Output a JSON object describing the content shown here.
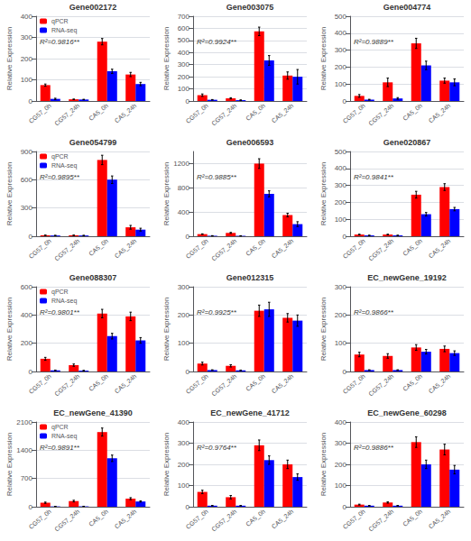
{
  "chart_data": [
    {
      "type": "bar",
      "title": "Gene002172",
      "annotation": "R²=0.9816**",
      "ylabel": "Relative Expression",
      "categories": [
        "CG57_0h",
        "CG57_24h",
        "CA5_0h",
        "CA5_24h"
      ],
      "series": [
        {
          "name": "qPCR",
          "color": "#FF0000",
          "values": [
            75,
            8,
            280,
            125
          ],
          "errors": [
            5,
            1,
            15,
            10
          ]
        },
        {
          "name": "RNA-seq",
          "color": "#0000FF",
          "values": [
            10,
            7,
            140,
            80
          ],
          "errors": [
            3,
            1,
            10,
            8
          ]
        }
      ],
      "ylim": [
        0,
        400
      ],
      "yticks": [
        0,
        100,
        200,
        300,
        400
      ],
      "grid": true,
      "legend": "upper left"
    },
    {
      "type": "bar",
      "title": "Gene003075",
      "annotation": "R²=0.9924**",
      "ylabel": "Relative Expression",
      "categories": [
        "CG57_0h",
        "CG57_24h",
        "CA5_0h",
        "CA5_24h"
      ],
      "series": [
        {
          "name": "qPCR",
          "color": "#FF0000",
          "values": [
            48,
            22,
            575,
            210
          ],
          "errors": [
            10,
            5,
            35,
            30
          ]
        },
        {
          "name": "RNA-seq",
          "color": "#0000FF",
          "values": [
            10,
            7,
            335,
            200
          ],
          "errors": [
            2,
            2,
            40,
            60
          ]
        }
      ],
      "ylim": [
        0,
        700
      ],
      "yticks": [
        0,
        100,
        200,
        300,
        400,
        500,
        600,
        700
      ],
      "grid": true
    },
    {
      "type": "bar",
      "title": "Gene004774",
      "annotation": "R²=0.9889**",
      "ylabel": "Relative Expression",
      "categories": [
        "CG57_0h",
        "CG57_24h",
        "CA5_0h",
        "CA5_24h"
      ],
      "series": [
        {
          "name": "qPCR",
          "color": "#FF0000",
          "values": [
            30,
            110,
            340,
            120
          ],
          "errors": [
            8,
            25,
            30,
            15
          ]
        },
        {
          "name": "RNA-seq",
          "color": "#0000FF",
          "values": [
            8,
            15,
            210,
            110
          ],
          "errors": [
            2,
            5,
            25,
            20
          ]
        }
      ],
      "ylim": [
        0,
        500
      ],
      "yticks": [
        0,
        100,
        200,
        300,
        400,
        500
      ],
      "grid": true
    },
    {
      "type": "bar",
      "title": "Gene054799",
      "annotation": "R²=0.9895**",
      "ylabel": "Relative Expression",
      "categories": [
        "CG57_0h",
        "CG57_24h",
        "CA5_0h",
        "CA5_24h"
      ],
      "series": [
        {
          "name": "qPCR",
          "color": "#FF0000",
          "values": [
            10,
            10,
            810,
            95
          ],
          "errors": [
            2,
            2,
            50,
            20
          ]
        },
        {
          "name": "RNA-seq",
          "color": "#0000FF",
          "values": [
            8,
            8,
            600,
            70
          ],
          "errors": [
            2,
            2,
            40,
            15
          ]
        }
      ],
      "ylim": [
        0,
        900
      ],
      "yticks": [
        0,
        300,
        600,
        900
      ],
      "grid": true,
      "legend": "upper left"
    },
    {
      "type": "bar",
      "title": "Gene006593",
      "annotation": "R²=0.9885**",
      "ylabel": "Relative Expression",
      "categories": [
        "CG57_0h",
        "CG57_24h",
        "CA5_0h",
        "CA5_24h"
      ],
      "series": [
        {
          "name": "qPCR",
          "color": "#FF0000",
          "values": [
            35,
            55,
            1200,
            350
          ],
          "errors": [
            5,
            8,
            80,
            30
          ]
        },
        {
          "name": "RNA-seq",
          "color": "#0000FF",
          "values": [
            8,
            7,
            700,
            200
          ],
          "errors": [
            2,
            2,
            50,
            40
          ]
        }
      ],
      "ylim": [
        0,
        1400
      ],
      "yticks": [
        0,
        400,
        800,
        1200
      ],
      "grid": true
    },
    {
      "type": "bar",
      "title": "Gene020867",
      "annotation": "R²=0.9841**",
      "ylabel": "Relative Expression",
      "categories": [
        "CG57_0h",
        "CG57_24h",
        "CA5_0h",
        "CA5_24h"
      ],
      "series": [
        {
          "name": "qPCR",
          "color": "#FF0000",
          "values": [
            10,
            10,
            245,
            290
          ],
          "errors": [
            2,
            2,
            20,
            20
          ]
        },
        {
          "name": "RNA-seq",
          "color": "#0000FF",
          "values": [
            5,
            5,
            130,
            160
          ],
          "errors": [
            1,
            1,
            10,
            10
          ]
        }
      ],
      "ylim": [
        0,
        500
      ],
      "yticks": [
        0,
        100,
        200,
        300,
        400,
        500
      ],
      "grid": true
    },
    {
      "type": "bar",
      "title": "Gene088307",
      "annotation": "R²=0.9801**",
      "ylabel": "Relative Expression",
      "categories": [
        "CG57_0h",
        "CG57_24h",
        "CA5_0h",
        "CA5_24h"
      ],
      "series": [
        {
          "name": "qPCR",
          "color": "#FF0000",
          "values": [
            90,
            45,
            410,
            390
          ],
          "errors": [
            10,
            8,
            30,
            30
          ]
        },
        {
          "name": "RNA-seq",
          "color": "#0000FF",
          "values": [
            8,
            6,
            250,
            220
          ],
          "errors": [
            2,
            2,
            20,
            20
          ]
        }
      ],
      "ylim": [
        0,
        600
      ],
      "yticks": [
        0,
        200,
        400,
        600
      ],
      "grid": true,
      "legend": "upper left"
    },
    {
      "type": "bar",
      "title": "Gene012315",
      "annotation": "R²=0.9925**",
      "ylabel": "Relative Expression",
      "categories": [
        "CG57_0h",
        "CG57_24h",
        "CA5_0h",
        "CA5_24h"
      ],
      "series": [
        {
          "name": "qPCR",
          "color": "#FF0000",
          "values": [
            28,
            20,
            215,
            190
          ],
          "errors": [
            5,
            4,
            20,
            15
          ]
        },
        {
          "name": "RNA-seq",
          "color": "#0000FF",
          "values": [
            5,
            4,
            220,
            180
          ],
          "errors": [
            1,
            1,
            25,
            20
          ]
        }
      ],
      "ylim": [
        0,
        300
      ],
      "yticks": [
        0,
        100,
        200,
        300
      ],
      "grid": true
    },
    {
      "type": "bar",
      "title": "EC_newGene_19192",
      "annotation": "R²=0.9866**",
      "ylabel": "Relative Expression",
      "categories": [
        "CG57_0h",
        "CG57_24h",
        "CA5_0h",
        "CA5_24h"
      ],
      "series": [
        {
          "name": "qPCR",
          "color": "#FF0000",
          "values": [
            60,
            55,
            85,
            80
          ],
          "errors": [
            8,
            8,
            10,
            10
          ]
        },
        {
          "name": "RNA-seq",
          "color": "#0000FF",
          "values": [
            5,
            5,
            70,
            65
          ],
          "errors": [
            1,
            1,
            8,
            8
          ]
        }
      ],
      "ylim": [
        0,
        300
      ],
      "yticks": [
        0,
        100,
        200,
        300
      ],
      "grid": true
    },
    {
      "type": "bar",
      "title": "EC_newGene_41390",
      "annotation": "R²=0.9891**",
      "ylabel": "Relative Expression",
      "categories": [
        "CG57_0h",
        "CG57_24h",
        "CA5_0h",
        "CA5_24h"
      ],
      "series": [
        {
          "name": "qPCR",
          "color": "#FF0000",
          "values": [
            100,
            140,
            1850,
            200
          ],
          "errors": [
            15,
            20,
            100,
            25
          ]
        },
        {
          "name": "RNA-seq",
          "color": "#0000FF",
          "values": [
            8,
            10,
            1200,
            130
          ],
          "errors": [
            2,
            2,
            80,
            15
          ]
        }
      ],
      "ylim": [
        0,
        2100
      ],
      "yticks": [
        0,
        700,
        1400,
        2100
      ],
      "grid": true,
      "legend": "upper left"
    },
    {
      "type": "bar",
      "title": "EC_newGene_41712",
      "annotation": "R²=0.9764**",
      "ylabel": "Relative Expression",
      "categories": [
        "CG57_0h",
        "CG57_24h",
        "CA5_0h",
        "CA5_24h"
      ],
      "series": [
        {
          "name": "qPCR",
          "color": "#FF0000",
          "values": [
            70,
            45,
            290,
            200
          ],
          "errors": [
            8,
            8,
            25,
            20
          ]
        },
        {
          "name": "RNA-seq",
          "color": "#0000FF",
          "values": [
            5,
            5,
            220,
            140
          ],
          "errors": [
            1,
            1,
            20,
            15
          ]
        }
      ],
      "ylim": [
        0,
        400
      ],
      "yticks": [
        0,
        100,
        200,
        300,
        400
      ],
      "grid": true
    },
    {
      "type": "bar",
      "title": "EC_newGene_60298",
      "annotation": "R²=0.9886**",
      "ylabel": "Relative Expression",
      "categories": [
        "CG57_0h",
        "CG57_24h",
        "CA5_0h",
        "CA5_24h"
      ],
      "series": [
        {
          "name": "qPCR",
          "color": "#FF0000",
          "values": [
            10,
            20,
            305,
            270
          ],
          "errors": [
            2,
            3,
            25,
            25
          ]
        },
        {
          "name": "RNA-seq",
          "color": "#0000FF",
          "values": [
            5,
            5,
            200,
            175
          ],
          "errors": [
            1,
            1,
            20,
            20
          ]
        }
      ],
      "ylim": [
        0,
        400
      ],
      "yticks": [
        0,
        100,
        200,
        300,
        400
      ],
      "grid": true
    }
  ]
}
